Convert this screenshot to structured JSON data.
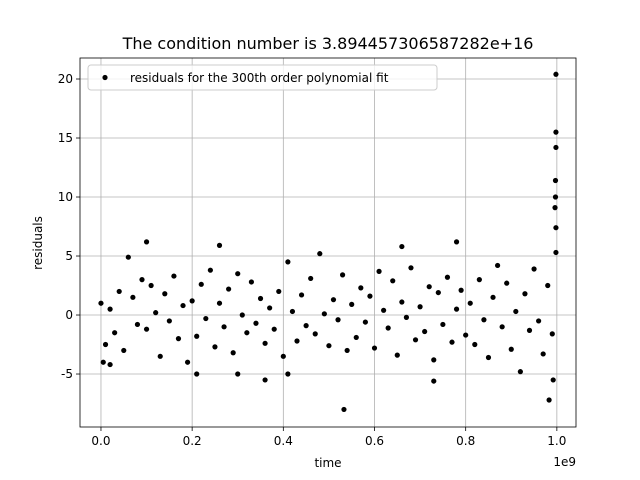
{
  "chart_data": {
    "type": "scatter",
    "title": "The condition number is 3.894457306587282e+16",
    "x_label": "time",
    "y_label": "residuals",
    "x_offset_label": "1e9",
    "xlim": [
      -0.046,
      1.042
    ],
    "ylim": [
      -9.49,
      21.78
    ],
    "xticks": [
      {
        "value": 0,
        "label": "0.0"
      },
      0.2,
      0.4,
      0.6,
      0.8,
      {
        "value": 1,
        "label": "1.0"
      }
    ],
    "yticks": [
      -5,
      0,
      5,
      10,
      15,
      20
    ],
    "grid": true,
    "legend": "upper left",
    "series": [
      {
        "name": "residuals for the 300th order polynomial fit",
        "color": "#000000",
        "x": [
          0.0,
          0.01,
          0.02,
          0.03,
          0.04,
          0.05,
          0.06,
          0.07,
          0.08,
          0.09,
          0.1,
          0.11,
          0.12,
          0.13,
          0.14,
          0.15,
          0.16,
          0.17,
          0.18,
          0.19,
          0.2,
          0.21,
          0.22,
          0.23,
          0.24,
          0.25,
          0.26,
          0.27,
          0.28,
          0.29,
          0.3,
          0.31,
          0.32,
          0.33,
          0.34,
          0.35,
          0.36,
          0.37,
          0.38,
          0.39,
          0.4,
          0.41,
          0.42,
          0.43,
          0.44,
          0.45,
          0.46,
          0.47,
          0.48,
          0.49,
          0.5,
          0.51,
          0.52,
          0.53,
          0.54,
          0.55,
          0.56,
          0.57,
          0.58,
          0.59,
          0.6,
          0.61,
          0.62,
          0.63,
          0.64,
          0.65,
          0.66,
          0.67,
          0.68,
          0.69,
          0.7,
          0.71,
          0.72,
          0.73,
          0.74,
          0.75,
          0.76,
          0.77,
          0.78,
          0.79,
          0.8,
          0.81,
          0.82,
          0.83,
          0.84,
          0.85,
          0.86,
          0.87,
          0.88,
          0.89,
          0.9,
          0.91,
          0.92,
          0.93,
          0.94,
          0.95,
          0.96,
          0.97,
          0.98,
          0.99,
          0.533,
          0.998,
          0.998,
          0.998,
          0.997,
          0.997,
          0.996,
          0.998,
          0.998,
          0.983,
          0.992,
          0.1,
          0.26,
          0.78,
          0.66,
          0.36,
          0.73,
          0.21,
          0.3,
          0.41,
          0.005,
          0.02
        ],
        "values": [
          1.0,
          -2.5,
          0.5,
          -1.5,
          2.0,
          -3.0,
          4.9,
          1.5,
          -0.8,
          3.0,
          -1.2,
          2.5,
          0.2,
          -3.5,
          1.8,
          -0.5,
          3.3,
          -2.0,
          0.8,
          -4.0,
          1.2,
          -1.8,
          2.6,
          -0.3,
          3.8,
          -2.7,
          1.0,
          -1.0,
          2.2,
          -3.2,
          3.5,
          0.0,
          -1.5,
          2.8,
          -0.7,
          1.4,
          -2.4,
          0.6,
          -1.2,
          2.0,
          -3.5,
          4.5,
          0.3,
          -2.2,
          1.7,
          -0.9,
          3.1,
          -1.6,
          5.2,
          0.1,
          -2.6,
          1.3,
          -0.4,
          3.4,
          -3.0,
          0.9,
          -1.9,
          2.3,
          -0.6,
          1.6,
          -2.8,
          3.7,
          0.4,
          -1.1,
          2.9,
          -3.4,
          1.1,
          -0.2,
          4.0,
          -2.1,
          0.7,
          -1.4,
          2.4,
          -3.8,
          1.9,
          -0.8,
          3.2,
          -2.3,
          0.5,
          2.1,
          -1.7,
          1.0,
          -2.5,
          3.0,
          -0.4,
          -3.6,
          1.5,
          4.2,
          -1.0,
          2.7,
          -2.9,
          0.3,
          -4.8,
          1.8,
          -1.3,
          3.9,
          -0.5,
          -3.3,
          2.5,
          -1.6,
          -8.0,
          20.4,
          15.5,
          14.2,
          11.4,
          10.0,
          9.1,
          7.4,
          5.3,
          -7.2,
          -5.5,
          6.2,
          5.9,
          6.2,
          5.8,
          -5.5,
          -5.6,
          -5.0,
          -5.0,
          -5.0,
          -4.0,
          -4.2
        ]
      }
    ]
  }
}
